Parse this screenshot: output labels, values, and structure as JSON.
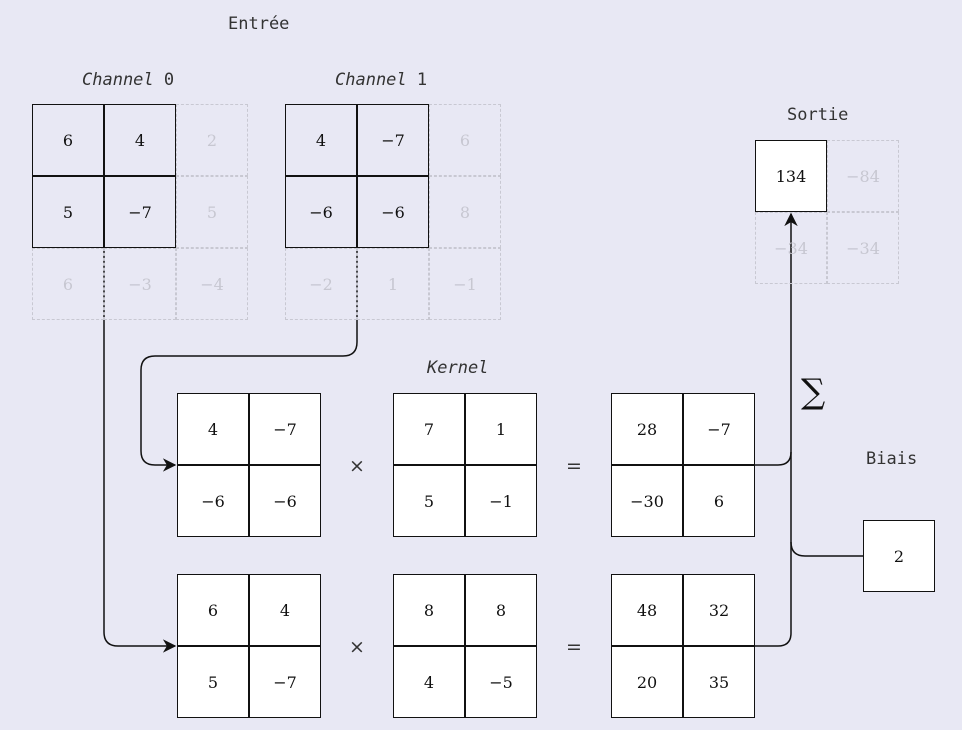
{
  "labels": {
    "input": "Entrée",
    "channel_word": "Channel",
    "channel0_index": "0",
    "channel1_index": "1",
    "output": "Sortie",
    "kernel": "Kernel",
    "bias": "Biais"
  },
  "operators": {
    "multiply": "×",
    "equals": "=",
    "sum": "∑"
  },
  "channel0": [
    [
      "6",
      "4",
      "2"
    ],
    [
      "5",
      "−7",
      "5"
    ],
    [
      "6",
      "−3",
      "−4"
    ]
  ],
  "channel1": [
    [
      "4",
      "−7",
      "6"
    ],
    [
      "−6",
      "−6",
      "8"
    ],
    [
      "−2",
      "1",
      "−1"
    ]
  ],
  "output": [
    [
      "134",
      "−84"
    ],
    [
      "−34",
      "−34"
    ]
  ],
  "rows": [
    {
      "window": [
        [
          "4",
          "−7"
        ],
        [
          "−6",
          "−6"
        ]
      ],
      "kernel": [
        [
          "7",
          "1"
        ],
        [
          "5",
          "−1"
        ]
      ],
      "product": [
        [
          "28",
          "−7"
        ],
        [
          "−30",
          "6"
        ]
      ]
    },
    {
      "window": [
        [
          "6",
          "4"
        ],
        [
          "5",
          "−7"
        ]
      ],
      "kernel": [
        [
          "8",
          "8"
        ],
        [
          "4",
          "−5"
        ]
      ],
      "product": [
        [
          "48",
          "32"
        ],
        [
          "20",
          "35"
        ]
      ]
    }
  ],
  "bias": "2"
}
